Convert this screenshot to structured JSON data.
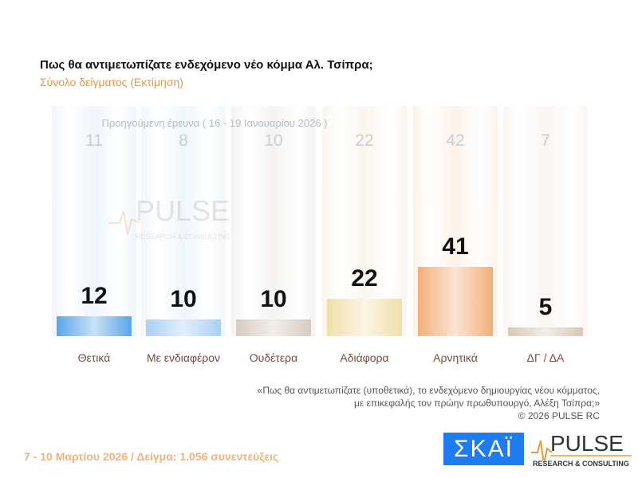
{
  "title": "Πως θα αντιμετωπίζατε ενδεχόμενο νέο κόμμα Αλ. Τσίπρα;",
  "subtitle": "Σύνολο δείγματος  (Εκτίμηση)",
  "chart_data": {
    "type": "bar",
    "title": "Πως θα αντιμετωπίζατε ενδεχόμενο νέο κόμμα Αλ. Τσίπρα;",
    "subtitle": "Σύνολο δείγματος  (Εκτίμηση)",
    "categories": [
      "Θετικά",
      "Με ενδιαφέρον",
      "Ουδέτερα",
      "Αδιάφορα",
      "Αρνητικά",
      "ΔΓ / ΔΑ"
    ],
    "values": [
      12,
      10,
      10,
      22,
      41,
      5
    ],
    "previous_label": "Προηγούμενη έρευνα ( 16 - 19 Ιανουαρίου 2026 )",
    "previous_values": [
      11,
      8,
      10,
      22,
      42,
      7
    ],
    "colors": [
      "#5aa6e8",
      "#a9cff2",
      "#d9cbbf",
      "#f1e0aa",
      "#f2b07a",
      "#dac7b3"
    ],
    "column_tints": [
      "#eef5fc",
      "#f0f6fc",
      "#f5f3f1",
      "#faf6ee",
      "#fcf2ea",
      "#faf6f2"
    ],
    "ylim": [
      0,
      42
    ]
  },
  "note": {
    "line1": "«Πως θα αντιμετωπίζατε (υποθετικά), το ενδεχόμενο δημιουργίας νέου κόμματος,",
    "line2": "με επικεφαλής τον πρώην πρωθυπουργό, Αλέξη Τσίπρα;»",
    "line3": "©  2026  PULSE RC"
  },
  "footer": "7 - 10  Μαρτίου 2026  /  Δείγμα:  1.056 συνεντεύξεις",
  "logos": {
    "skai": "ΣΚΑΪ",
    "pulse": "PULSE",
    "pulse_sub": "RESEARCH & CONSULTING"
  }
}
